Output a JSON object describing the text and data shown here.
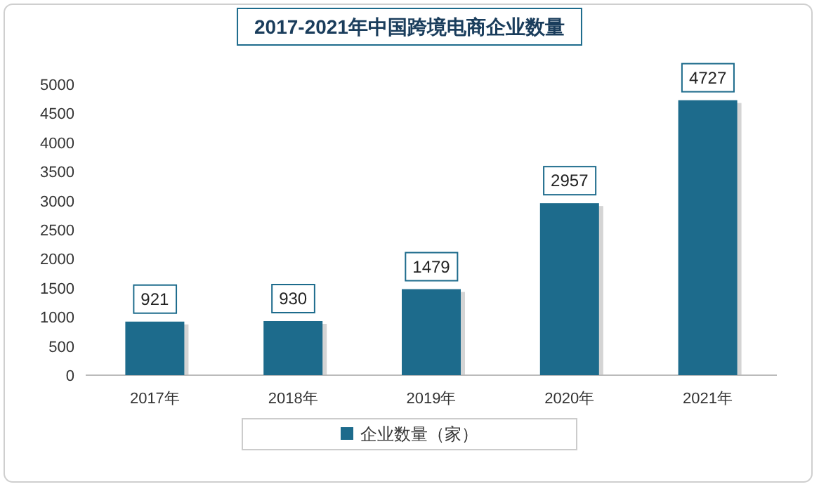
{
  "chart_data": {
    "type": "bar",
    "title": "2017-2021年中国跨境电商企业数量",
    "categories": [
      "2017年",
      "2018年",
      "2019年",
      "2020年",
      "2021年"
    ],
    "series": [
      {
        "name": "企业数量（家）",
        "color": "#1d6b8c",
        "values": [
          921,
          930,
          1479,
          2957,
          4727
        ]
      }
    ],
    "ylim": [
      0,
      5000
    ],
    "yticks": [
      0,
      500,
      1000,
      1500,
      2000,
      2500,
      3000,
      3500,
      4000,
      4500,
      5000
    ],
    "data_labels": true,
    "grid": false,
    "legend": "bottom"
  }
}
